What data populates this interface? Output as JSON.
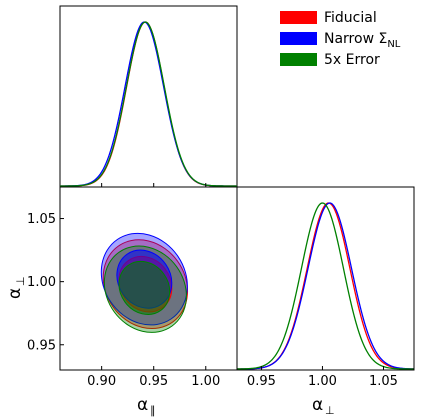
{
  "chart_data": {
    "type": "corner-plot",
    "parameters": [
      "alpha_parallel",
      "alpha_perp"
    ],
    "xlabels": {
      "alpha_parallel": {
        "main": "α",
        "sub": "∥"
      },
      "alpha_perp": {
        "main": "α",
        "sub": "⊥"
      }
    },
    "ylabel_2d": {
      "main": "α",
      "sub": "⊥"
    },
    "ranges": {
      "alpha_parallel": [
        0.86,
        1.03
      ],
      "alpha_perp": [
        0.93,
        1.075
      ]
    },
    "ticks": {
      "alpha_parallel": [
        "0.90",
        "0.95",
        "1.00"
      ],
      "alpha_parallel_values": [
        0.9,
        0.95,
        1.0
      ],
      "alpha_perp_y": [
        "0.95",
        "1.00",
        "1.05"
      ],
      "alpha_perp_y_values": [
        0.95,
        1.0,
        1.05
      ],
      "alpha_perp_x": [
        "0.95",
        "1.00",
        "1.05"
      ],
      "alpha_perp_x_values": [
        0.95,
        1.0,
        1.05
      ]
    },
    "legend_placement": "top-right",
    "series": [
      {
        "name": "Fiducial",
        "sub": "",
        "color": "#ff0000",
        "alpha_parallel": {
          "mean": 0.942,
          "sigma": 0.018
        },
        "alpha_perp": {
          "mean": 1.005,
          "sigma": 0.0175
        },
        "contours": [
          {
            "level": "95%",
            "cx": 0.942,
            "cy": 0.998,
            "rx": 0.038,
            "ry": 0.037,
            "angle_deg": -36
          },
          {
            "level": "68%",
            "cx": 0.942,
            "cy": 0.998,
            "rx": 0.024,
            "ry": 0.023,
            "angle_deg": -36
          }
        ]
      },
      {
        "name": "Narrow Σ",
        "sub": "NL",
        "color": "#0000ff",
        "alpha_parallel": {
          "mean": 0.941,
          "sigma": 0.0185
        },
        "alpha_perp": {
          "mean": 1.006,
          "sigma": 0.0178
        },
        "contours": [
          {
            "level": "95%",
            "cx": 0.941,
            "cy": 1.002,
            "rx": 0.039,
            "ry": 0.038,
            "angle_deg": -34
          },
          {
            "level": "68%",
            "cx": 0.941,
            "cy": 1.002,
            "rx": 0.025,
            "ry": 0.024,
            "angle_deg": -34
          }
        ]
      },
      {
        "name": "5x Error",
        "sub": "",
        "color": "#008000",
        "alpha_parallel": {
          "mean": 0.942,
          "sigma": 0.0182
        },
        "alpha_perp": {
          "mean": 1.0,
          "sigma": 0.0172
        },
        "contours": [
          {
            "level": "95%",
            "cx": 0.942,
            "cy": 0.994,
            "rx": 0.037,
            "ry": 0.036,
            "angle_deg": -36
          },
          {
            "level": "68%",
            "cx": 0.941,
            "cy": 0.995,
            "rx": 0.023,
            "ry": 0.022,
            "angle_deg": -36
          }
        ]
      }
    ]
  }
}
